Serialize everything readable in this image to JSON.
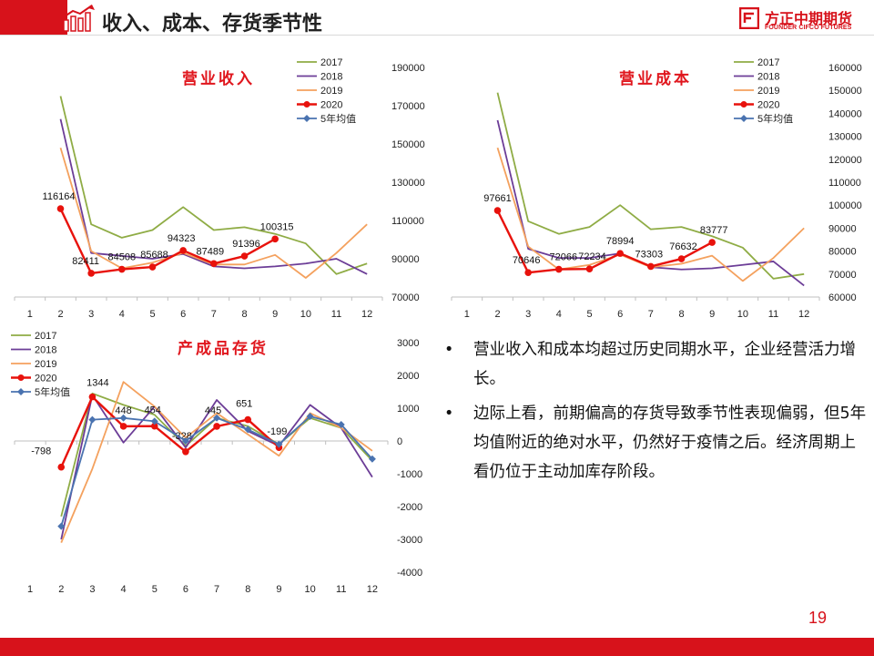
{
  "header": {
    "title": "收入、成本、存货季节性",
    "logo_cn": "方正中期期货",
    "logo_en": "FOUNDER CIFCO FUTURES",
    "brand_color": "#d7121b"
  },
  "series_styles": [
    {
      "name": "2017",
      "color": "#8fac45",
      "marker": "none"
    },
    {
      "name": "2018",
      "color": "#6c3d97",
      "marker": "none"
    },
    {
      "name": "2019",
      "color": "#f4a15e",
      "marker": "none"
    },
    {
      "name": "2020",
      "color": "#e8120c",
      "marker": "circle"
    },
    {
      "name": "5年均值",
      "color": "#4a73b0",
      "marker": "diamond"
    }
  ],
  "chart_data": [
    {
      "id": "revenue",
      "type": "line",
      "title": "营业收入",
      "categories": [
        "1",
        "2",
        "3",
        "4",
        "5",
        "6",
        "7",
        "8",
        "9",
        "10",
        "11",
        "12"
      ],
      "ylim": [
        70000,
        190000
      ],
      "yticks": [
        70000,
        90000,
        110000,
        130000,
        150000,
        170000,
        190000
      ],
      "y_axis_side": "right",
      "legend_position": "top-right",
      "series": [
        {
          "name": "2017",
          "values": [
            null,
            175000,
            108000,
            101000,
            105000,
            117000,
            105000,
            106500,
            103000,
            98000,
            82000,
            87500
          ]
        },
        {
          "name": "2018",
          "values": [
            null,
            163000,
            93000,
            91500,
            90000,
            92500,
            86000,
            85000,
            86000,
            87500,
            90000,
            82000
          ]
        },
        {
          "name": "2019",
          "values": [
            null,
            148000,
            94000,
            85000,
            88000,
            93000,
            87000,
            87000,
            92000,
            80000,
            93000,
            108000
          ]
        },
        {
          "name": "2020",
          "values": [
            null,
            116164,
            82411,
            84508,
            85688,
            94323,
            87489,
            91396,
            100315,
            null,
            null,
            null
          ],
          "labels": [
            "",
            "116164",
            "82411",
            "84508",
            "85688",
            "94323",
            "87489",
            "91396",
            "100315",
            "",
            "",
            ""
          ]
        },
        {
          "name": "5年均值",
          "values": [
            null,
            null,
            null,
            null,
            null,
            null,
            null,
            null,
            null,
            null,
            null,
            null
          ]
        }
      ]
    },
    {
      "id": "cost",
      "type": "line",
      "title": "营业成本",
      "categories": [
        "1",
        "2",
        "3",
        "4",
        "5",
        "6",
        "7",
        "8",
        "9",
        "10",
        "11",
        "12"
      ],
      "ylim": [
        60000,
        160000
      ],
      "yticks": [
        60000,
        70000,
        80000,
        90000,
        100000,
        110000,
        120000,
        130000,
        140000,
        150000,
        160000
      ],
      "y_axis_side": "right",
      "legend_position": "top-right",
      "series": [
        {
          "name": "2017",
          "values": [
            null,
            149000,
            93000,
            87500,
            90500,
            100000,
            89500,
            90500,
            86500,
            81500,
            68000,
            70000
          ]
        },
        {
          "name": "2018",
          "values": [
            null,
            137000,
            81000,
            77000,
            77000,
            79000,
            73000,
            72000,
            72500,
            74000,
            75500,
            65000
          ]
        },
        {
          "name": "2019",
          "values": [
            null,
            125000,
            82000,
            72000,
            74000,
            78500,
            73000,
            74500,
            78000,
            67000,
            77000,
            90000
          ]
        },
        {
          "name": "2020",
          "values": [
            null,
            97661,
            70646,
            72066,
            72234,
            78994,
            73303,
            76632,
            83777,
            null,
            null,
            null
          ],
          "labels": [
            "",
            "97661",
            "70646",
            "72066",
            "72234",
            "78994",
            "73303",
            "76632",
            "83777",
            "",
            "",
            ""
          ]
        },
        {
          "name": "5年均值",
          "values": [
            null,
            null,
            null,
            null,
            null,
            null,
            null,
            null,
            null,
            null,
            null,
            null
          ]
        }
      ]
    },
    {
      "id": "inventory",
      "type": "line",
      "title": "产成品存货",
      "categories": [
        "1",
        "2",
        "3",
        "4",
        "5",
        "6",
        "7",
        "8",
        "9",
        "10",
        "11",
        "12"
      ],
      "ylim": [
        -4000,
        3000
      ],
      "yticks": [
        -4000,
        -3000,
        -2000,
        -1000,
        0,
        1000,
        2000,
        3000
      ],
      "y_axis_side": "right",
      "legend_position": "top-left",
      "series": [
        {
          "name": "2017",
          "values": [
            null,
            -2300,
            1450,
            1100,
            800,
            -150,
            700,
            450,
            -100,
            700,
            400,
            -600
          ]
        },
        {
          "name": "2018",
          "values": [
            null,
            -3000,
            1400,
            -50,
            1050,
            -200,
            1250,
            300,
            -150,
            1100,
            400,
            -1100
          ]
        },
        {
          "name": "2019",
          "values": [
            null,
            -3100,
            -850,
            1800,
            1050,
            100,
            850,
            200,
            -450,
            850,
            400,
            -300
          ]
        },
        {
          "name": "2020",
          "values": [
            null,
            -798,
            1344,
            448,
            454,
            -328,
            445,
            651,
            -199,
            null,
            null,
            null
          ],
          "labels": [
            "",
            "-798",
            "1344",
            "448",
            "454",
            "-328",
            "445",
            "651",
            "-199",
            "",
            "",
            ""
          ]
        },
        {
          "name": "5年均值",
          "values": [
            null,
            -2600,
            650,
            700,
            600,
            0,
            700,
            350,
            -100,
            750,
            500,
            -550
          ]
        }
      ]
    }
  ],
  "bullets": [
    "营业收入和成本均超过历史同期水平，企业经营活力增长。",
    "边际上看，前期偏高的存货导致季节性表现偏弱，但5年均值附近的绝对水平，仍然好于疫情之后。经济周期上看仍位于主动加库存阶段。"
  ],
  "bullet_symbol": "•",
  "page_number": "19"
}
